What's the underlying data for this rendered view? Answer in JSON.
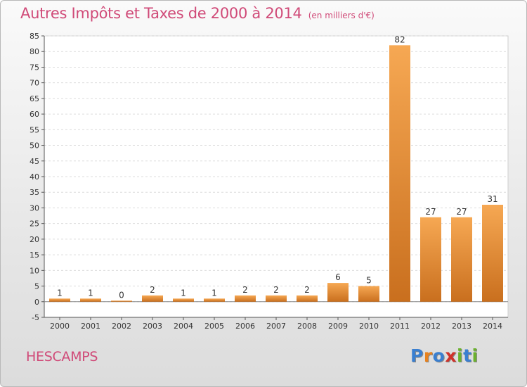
{
  "header": {
    "title": "Autres Impôts et Taxes de 2000 à 2014",
    "unit": "(en milliers d'€)"
  },
  "footer": {
    "town": "HESCAMPS",
    "logo": "Proxiti"
  },
  "colors": {
    "title": "#d04a78",
    "bar_light": "#f6a853",
    "bar_dark": "#c96f1e",
    "logo_letters": [
      "#3a7fd0",
      "#e8821e",
      "#3a7fd0",
      "#d0322a",
      "#6bb12e",
      "#3a7fd0",
      "#6bb12e"
    ]
  },
  "chart_data": {
    "type": "bar",
    "categories": [
      "2000",
      "2001",
      "2002",
      "2003",
      "2004",
      "2005",
      "2006",
      "2007",
      "2008",
      "2009",
      "2010",
      "2011",
      "2012",
      "2013",
      "2014"
    ],
    "values": [
      1,
      1,
      0,
      2,
      1,
      1,
      2,
      2,
      2,
      6,
      5,
      82,
      27,
      27,
      31
    ],
    "value_labels": [
      "1",
      "1",
      "0",
      "2",
      "1",
      "1",
      "2",
      "2",
      "2",
      "6",
      "5",
      "82",
      "27",
      "27",
      "31"
    ],
    "y_ticks": [
      -5,
      0,
      5,
      10,
      15,
      20,
      25,
      30,
      35,
      40,
      45,
      50,
      55,
      60,
      65,
      70,
      75,
      80,
      85
    ],
    "ylim": [
      -5,
      85
    ],
    "grid": true,
    "title": "Autres Impôts et Taxes de 2000 à 2014",
    "xlabel": "",
    "ylabel": ""
  }
}
